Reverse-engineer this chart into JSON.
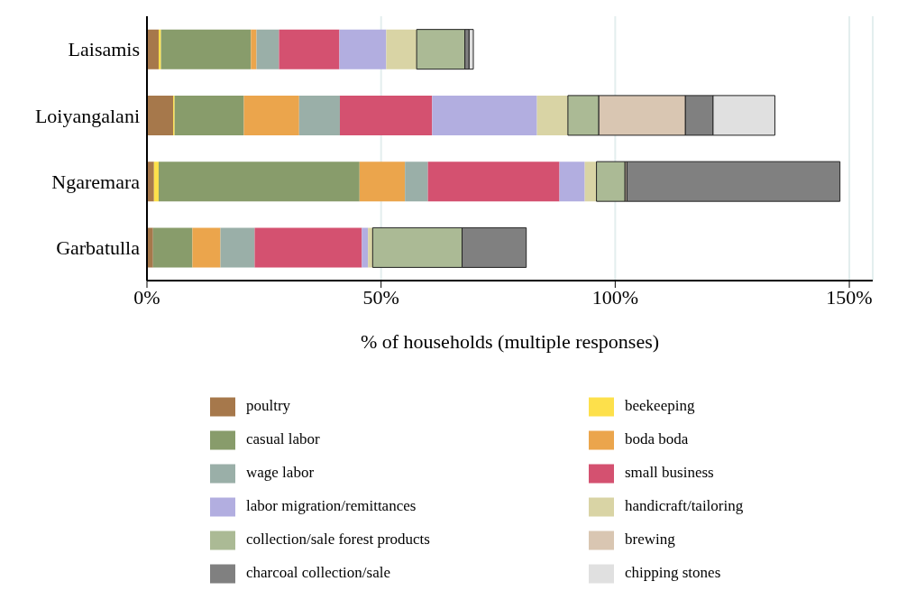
{
  "chart_data": {
    "type": "bar",
    "orientation": "horizontal",
    "stacked": true,
    "xlabel": "% of households (multiple responses)",
    "categories": [
      "Laisamis",
      "Loiyangalani",
      "Ngaremara",
      "Garbatulla"
    ],
    "xlim": [
      0,
      155
    ],
    "xticks": [
      {
        "value": 0,
        "label": "0%"
      },
      {
        "value": 50,
        "label": "50%"
      },
      {
        "value": 100,
        "label": "100%"
      },
      {
        "value": 150,
        "label": "150%"
      }
    ],
    "grid": "x",
    "legend": "bottom",
    "series": [
      {
        "name": "poultry",
        "color": "#a6784b",
        "values": [
          2.5,
          5.6,
          1.5,
          1.3
        ]
      },
      {
        "name": "beekeeping",
        "color": "#fde04b",
        "values": [
          0.5,
          0.3,
          1.0,
          0
        ]
      },
      {
        "name": "casual labor",
        "color": "#889c6b",
        "values": [
          19.2,
          14.8,
          42.9,
          8.4
        ]
      },
      {
        "name": "boda boda",
        "color": "#eba54c",
        "values": [
          1.2,
          11.8,
          9.7,
          6.0
        ]
      },
      {
        "name": "wage labor",
        "color": "#9aafa8",
        "values": [
          4.8,
          8.7,
          4.9,
          7.3
        ]
      },
      {
        "name": "small business",
        "color": "#d45170",
        "values": [
          12.9,
          19.7,
          28.1,
          22.9
        ]
      },
      {
        "name": "labor migration/remittances",
        "color": "#b2aee0",
        "values": [
          10.0,
          22.4,
          5.4,
          1.3
        ]
      },
      {
        "name": "handicraft/tailoring",
        "color": "#d9d4a5",
        "values": [
          6.5,
          6.6,
          2.5,
          1.0
        ]
      },
      {
        "name": "collection/sale forest products",
        "color": "#abba95",
        "values": [
          10.3,
          6.6,
          6.1,
          19.1
        ]
      },
      {
        "name": "brewing",
        "color": "#d9c6b2",
        "values": [
          0,
          18.5,
          0.4,
          0
        ]
      },
      {
        "name": "charcoal collection/sale",
        "color": "#808080",
        "values": [
          0.9,
          5.9,
          45.5,
          13.7
        ]
      },
      {
        "name": "chipping stones",
        "color": "#e0e0e0",
        "values": [
          0.9,
          13.2,
          0,
          0
        ]
      }
    ]
  }
}
